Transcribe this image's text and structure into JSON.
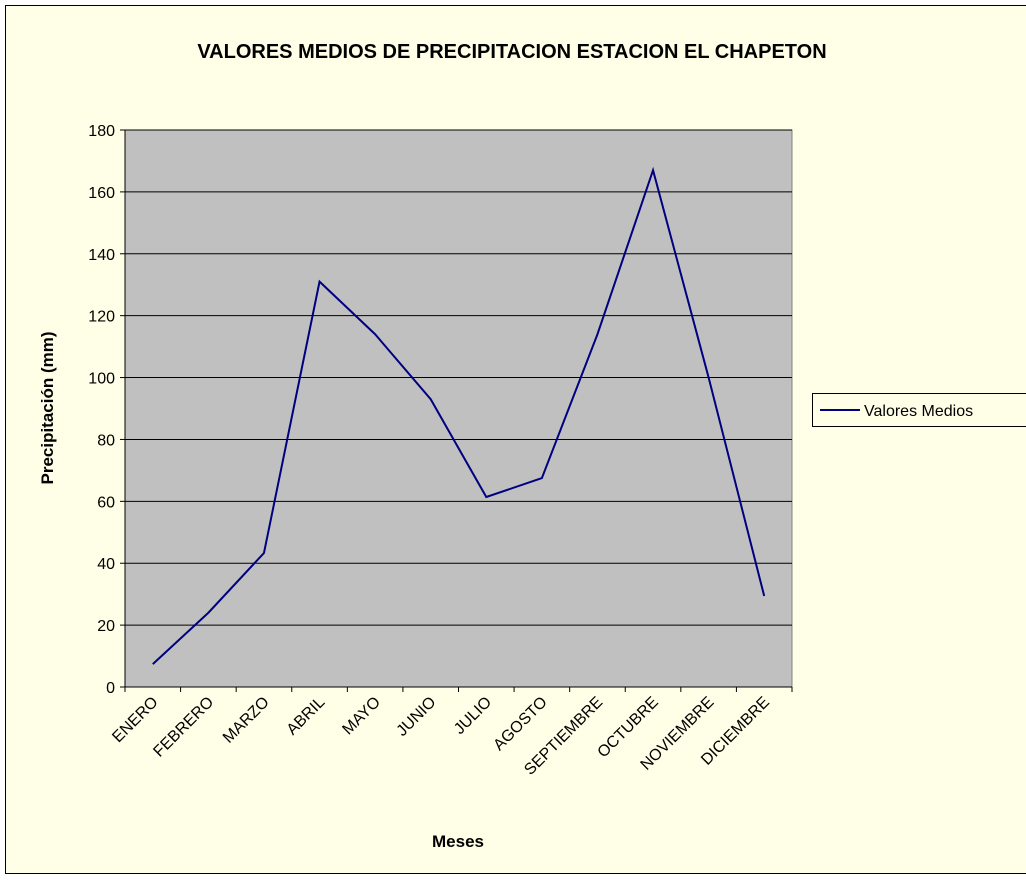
{
  "chart_data": {
    "type": "line",
    "title": "VALORES MEDIOS DE PRECIPITACION ESTACION EL CHAPETON",
    "x_label": "Meses",
    "y_label": "Precipitación (mm)",
    "categories": [
      "ENERO",
      "FEBRERO",
      "MARZO",
      "ABRIL",
      "MAYO",
      "JUNIO",
      "JULIO",
      "AGOSTO",
      "SEPTIEMBRE",
      "OCTUBRE",
      "NOVIEMBRE",
      "DICIEMBRE"
    ],
    "series": [
      {
        "name": "Valores Medios",
        "color": "#000080",
        "values": [
          7.4,
          24,
          43.3,
          131,
          114,
          93,
          61.4,
          67.5,
          114,
          167,
          100,
          29.4
        ]
      }
    ],
    "ylim": [
      0,
      180
    ],
    "yticks": [
      0,
      20,
      40,
      60,
      80,
      100,
      120,
      140,
      160,
      180
    ],
    "grid": true,
    "legend": "right"
  }
}
